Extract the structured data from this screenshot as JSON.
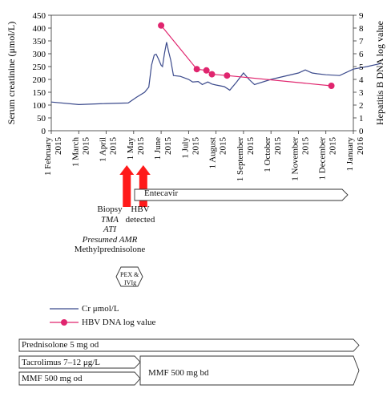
{
  "chart_data": {
    "type": "line",
    "x_ticks": [
      {
        "line1": "1 February",
        "line2": "2015"
      },
      {
        "line1": "1 March",
        "line2": "2015"
      },
      {
        "line1": "1 April",
        "line2": "2015"
      },
      {
        "line1": "1 May",
        "line2": "2015"
      },
      {
        "line1": "1 June",
        "line2": "2015"
      },
      {
        "line1": "1 July",
        "line2": "2015"
      },
      {
        "line1": "1 August",
        "line2": "2015"
      },
      {
        "line1": "1 September",
        "line2": "2015"
      },
      {
        "line1": "1 October",
        "line2": "2015"
      },
      {
        "line1": "1 November",
        "line2": "2015"
      },
      {
        "line1": "1 December",
        "line2": "2015"
      },
      {
        "line1": "1 January",
        "line2": "2016"
      }
    ],
    "y_left": {
      "label": "Serum creatinine (μmol/L)",
      "ticks": [
        0,
        50,
        100,
        150,
        200,
        250,
        300,
        350,
        400,
        450
      ],
      "range": [
        0,
        450
      ]
    },
    "y_right": {
      "label": "Hepatitis B DNA log value",
      "ticks": [
        0,
        1,
        2,
        3,
        4,
        5,
        6,
        7,
        8,
        9
      ],
      "range": [
        0,
        9
      ]
    },
    "series": [
      {
        "name": "Cr μmol/L",
        "color": "#3b4a8c",
        "axis": "left",
        "points": [
          [
            0.0,
            112
          ],
          [
            1.0,
            102
          ],
          [
            2.0,
            106
          ],
          [
            2.8,
            108
          ],
          [
            3.1,
            130
          ],
          [
            3.4,
            150
          ],
          [
            3.55,
            170
          ],
          [
            3.65,
            255
          ],
          [
            3.75,
            295
          ],
          [
            3.82,
            298
          ],
          [
            3.9,
            280
          ],
          [
            4.0,
            255
          ],
          [
            4.05,
            250
          ],
          [
            4.12,
            300
          ],
          [
            4.2,
            345
          ],
          [
            4.28,
            305
          ],
          [
            4.35,
            275
          ],
          [
            4.45,
            215
          ],
          [
            4.7,
            212
          ],
          [
            5.0,
            200
          ],
          [
            5.15,
            190
          ],
          [
            5.35,
            192
          ],
          [
            5.5,
            180
          ],
          [
            5.7,
            190
          ],
          [
            5.85,
            182
          ],
          [
            6.0,
            178
          ],
          [
            6.3,
            172
          ],
          [
            6.5,
            158
          ],
          [
            6.75,
            190
          ],
          [
            7.0,
            225
          ],
          [
            7.2,
            200
          ],
          [
            7.4,
            180
          ],
          [
            8.0,
            200
          ],
          [
            9.0,
            225
          ],
          [
            9.25,
            237
          ],
          [
            9.5,
            225
          ],
          [
            9.7,
            222
          ],
          [
            10.0,
            218
          ],
          [
            10.5,
            215
          ],
          [
            11.0,
            240
          ],
          [
            11.5,
            250
          ],
          [
            12.0,
            262
          ]
        ]
      },
      {
        "name": "HBV DNA log value",
        "color": "#e0256e",
        "axis": "right",
        "points": [
          [
            4.0,
            8.2
          ],
          [
            5.3,
            4.8
          ],
          [
            5.65,
            4.7
          ],
          [
            5.85,
            4.4
          ],
          [
            6.4,
            4.3
          ],
          [
            10.2,
            3.5
          ]
        ]
      }
    ],
    "legend": {
      "position": "bottom-left"
    }
  },
  "annotations": {
    "arrows_color": "#ff1a1a",
    "first_arrow": {
      "lines": [
        {
          "text": "Biopsy",
          "italic": false
        },
        {
          "text": "TMA",
          "italic": true
        },
        {
          "text": "ATI",
          "italic": true
        },
        {
          "text": "Presumed AMR",
          "italic": true
        },
        {
          "text": "Methylprednisolone",
          "italic": false
        }
      ]
    },
    "second_arrow": {
      "lines": [
        {
          "text": "HBV",
          "italic": false
        },
        {
          "text": "detected",
          "italic": false
        }
      ]
    },
    "pex_ivig": {
      "line1": "PEX &",
      "line2": "IVIg"
    }
  },
  "medications": {
    "entecavir": "Entecavir",
    "prednisolone": "Prednisolone 5 mg od",
    "tacrolimus": "Tacrolimus 7–12 μg/L",
    "mmf_od": "MMF 500 mg od",
    "mmf_bd": "MMF 500 mg bd"
  }
}
